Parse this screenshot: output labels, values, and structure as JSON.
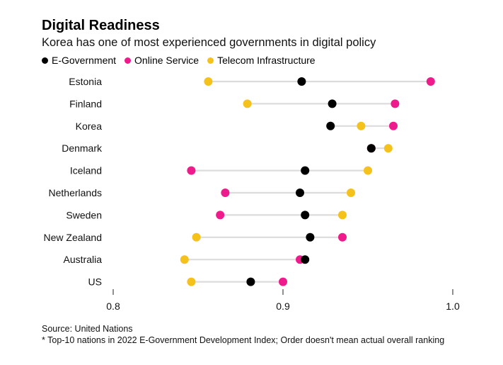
{
  "header": {
    "title": "Digital Readiness",
    "subtitle": "Korea has one of most experienced governments in digital policy"
  },
  "legend": [
    {
      "label": "E-Government",
      "color": "#000000"
    },
    {
      "label": "Online Service",
      "color": "#ef1a8c"
    },
    {
      "label": "Telecom Infrastructure",
      "color": "#f5c21b"
    }
  ],
  "footer": {
    "source": "Source: United Nations",
    "note": "* Top-10 nations in 2022 E-Government Development Index; Order doesn't mean actual overall ranking"
  },
  "chart_data": {
    "type": "scatter",
    "subtype": "dot-plot",
    "categories": [
      "Estonia",
      "Finland",
      "Korea",
      "Denmark",
      "Iceland",
      "Netherlands",
      "Sweden",
      "New Zealand",
      "Australia",
      "US"
    ],
    "series": [
      {
        "name": "E-Government",
        "color": "#000000",
        "values": [
          0.911,
          0.929,
          0.928,
          0.952,
          0.913,
          0.91,
          0.913,
          0.916,
          0.913,
          0.881
        ]
      },
      {
        "name": "Online Service",
        "color": "#ef1a8c",
        "values": [
          0.987,
          0.966,
          0.965,
          0.952,
          0.846,
          0.866,
          0.863,
          0.935,
          0.91,
          0.9
        ]
      },
      {
        "name": "Telecom Infrastructure",
        "color": "#f5c21b",
        "values": [
          0.856,
          0.879,
          0.946,
          0.962,
          0.95,
          0.94,
          0.935,
          0.849,
          0.842,
          0.846
        ]
      }
    ],
    "xlim": [
      0.8,
      1.0
    ],
    "xticks": [
      "0.8",
      "0.9",
      "1.0"
    ],
    "xlabel": "",
    "ylabel": "",
    "grid": false,
    "legend_position": "top-left"
  }
}
